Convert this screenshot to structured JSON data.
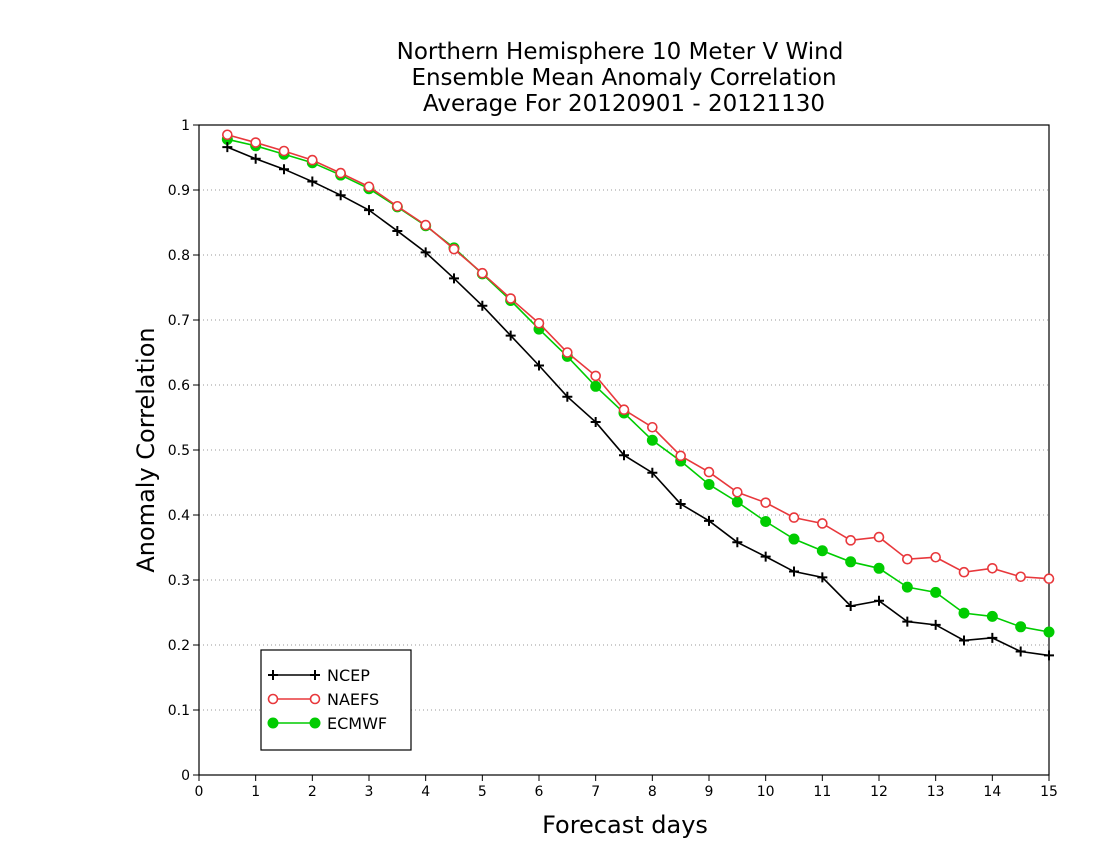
{
  "chart_data": {
    "type": "line",
    "title_lines": [
      "Northern Hemisphere 10 Meter V Wind",
      "Ensemble Mean Anomaly Correlation",
      "Average For 20120901 - 20121130"
    ],
    "xlabel": "Forecast days",
    "ylabel": "Anomaly Correlation",
    "xlim": [
      0,
      15
    ],
    "ylim": [
      0,
      1
    ],
    "xticks": [
      "0",
      "1",
      "2",
      "3",
      "4",
      "5",
      "6",
      "7",
      "8",
      "9",
      "10",
      "11",
      "12",
      "13",
      "14",
      "15"
    ],
    "yticks": [
      "0",
      "0.1",
      "0.2",
      "0.3",
      "0.4",
      "0.5",
      "0.6",
      "0.7",
      "0.8",
      "0.9",
      "1"
    ],
    "grid": "horizontal dotted",
    "legend_position": "bottom-left",
    "x": [
      0.5,
      1,
      1.5,
      2,
      2.5,
      3,
      3.5,
      4,
      4.5,
      5,
      5.5,
      6,
      6.5,
      7,
      7.5,
      8,
      8.5,
      9,
      9.5,
      10,
      10.5,
      11,
      11.5,
      12,
      12.5,
      13,
      13.5,
      14,
      14.5,
      15
    ],
    "series": [
      {
        "name": "NCEP",
        "color": "#000000",
        "marker": "plus",
        "values": [
          0.966,
          0.948,
          0.932,
          0.913,
          0.892,
          0.869,
          0.837,
          0.804,
          0.764,
          0.722,
          0.676,
          0.63,
          0.582,
          0.543,
          0.492,
          0.465,
          0.417,
          0.391,
          0.358,
          0.336,
          0.313,
          0.304,
          0.26,
          0.268,
          0.236,
          0.231,
          0.207,
          0.211,
          0.19,
          0.184
        ]
      },
      {
        "name": "NAEFS",
        "color": "#e8383c",
        "marker": "open-circle",
        "values": [
          0.985,
          0.973,
          0.96,
          0.946,
          0.926,
          0.905,
          0.875,
          0.846,
          0.809,
          0.772,
          0.733,
          0.695,
          0.65,
          0.614,
          0.562,
          0.535,
          0.491,
          0.466,
          0.435,
          0.419,
          0.396,
          0.387,
          0.361,
          0.366,
          0.332,
          0.335,
          0.312,
          0.318,
          0.305,
          0.302
        ]
      },
      {
        "name": "ECMWF",
        "color": "#00cc00",
        "marker": "filled-circle",
        "values": [
          0.978,
          0.968,
          0.955,
          0.942,
          0.923,
          0.902,
          0.874,
          0.845,
          0.811,
          0.771,
          0.73,
          0.686,
          0.644,
          0.598,
          0.557,
          0.515,
          0.483,
          0.447,
          0.42,
          0.39,
          0.363,
          0.345,
          0.328,
          0.318,
          0.289,
          0.281,
          0.249,
          0.244,
          0.228,
          0.22
        ]
      }
    ]
  }
}
